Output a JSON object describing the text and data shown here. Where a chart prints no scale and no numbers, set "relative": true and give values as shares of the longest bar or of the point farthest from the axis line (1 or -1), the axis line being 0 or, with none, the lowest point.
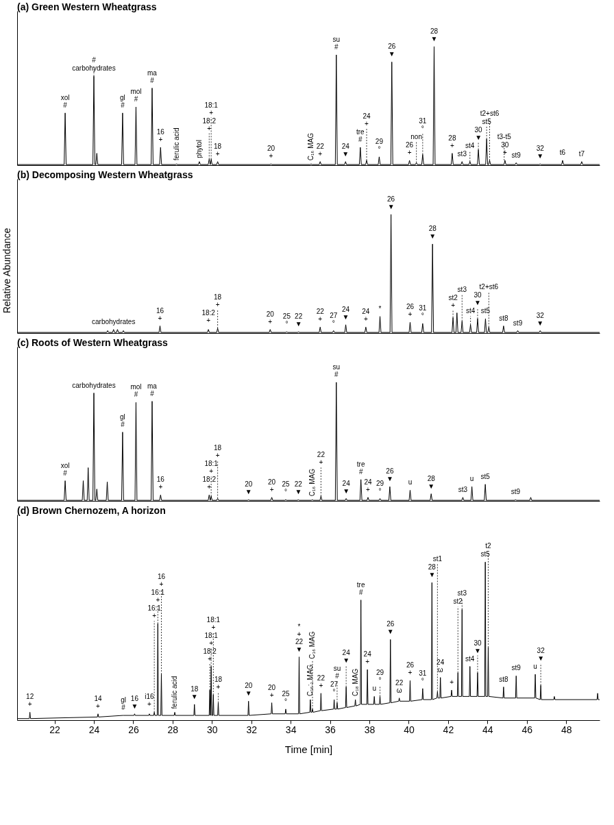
{
  "chart_data": [
    {
      "type": "line",
      "title": "(a) Green Western Wheatgrass",
      "relative": true,
      "color": "#000000",
      "xlim": [
        20.1,
        49.7
      ],
      "tick_labels": false,
      "x": [
        20.1,
        22.49,
        22.54,
        22.59,
        23.95,
        24.0,
        24.05,
        24.1,
        24.15,
        24.2,
        25.41,
        25.46,
        25.51,
        26.09,
        26.14,
        26.19,
        26.91,
        26.96,
        27.01,
        27.34,
        27.39,
        27.44,
        28.15,
        28.2,
        28.25,
        29.31,
        29.36,
        29.41,
        29.81,
        29.86,
        29.91,
        29.92,
        29.96,
        30.01,
        30.24,
        30.29,
        30.34,
        32.95,
        33.0,
        33.05,
        34.99,
        35.04,
        35.09,
        35.45,
        35.5,
        35.55,
        36.27,
        36.32,
        36.37,
        36.74,
        36.79,
        36.84,
        37.49,
        37.54,
        37.59,
        37.81,
        37.86,
        37.91,
        38.45,
        38.5,
        38.55,
        39.09,
        39.14,
        39.19,
        39.99,
        40.04,
        40.09,
        40.34,
        40.39,
        40.44,
        40.66,
        40.71,
        40.76,
        41.24,
        41.29,
        41.34,
        42.16,
        42.21,
        42.26,
        42.66,
        42.71,
        42.76,
        43.06,
        43.11,
        43.16,
        43.49,
        43.54,
        43.59,
        43.91,
        43.96,
        44.01,
        44.06,
        44.11,
        44.16,
        44.84,
        44.89,
        44.94,
        45.41,
        45.46,
        45.51,
        46.63,
        46.68,
        46.73,
        47.77,
        47.82,
        47.87,
        48.74,
        48.79,
        48.84,
        49.7
      ],
      "values": [
        0.005,
        0.005,
        0.44,
        0.005,
        0.005,
        0.75,
        0.005,
        0.005,
        0.1,
        0.005,
        0.005,
        0.44,
        0.005,
        0.005,
        0.49,
        0.005,
        0.005,
        0.65,
        0.005,
        0.005,
        0.15,
        0.005,
        0.005,
        0.01,
        0.005,
        0.005,
        0.03,
        0.005,
        0.005,
        0.05,
        0.005,
        0.005,
        0.05,
        0.005,
        0.005,
        0.03,
        0.005,
        0.005,
        0.01,
        0.005,
        0.005,
        0.01,
        0.005,
        0.005,
        0.03,
        0.005,
        0.005,
        0.93,
        0.005,
        0.005,
        0.03,
        0.005,
        0.005,
        0.15,
        0.005,
        0.005,
        0.04,
        0.005,
        0.005,
        0.07,
        0.005,
        0.005,
        0.87,
        0.005,
        0.005,
        0.04,
        0.005,
        0.005,
        0.02,
        0.005,
        0.005,
        0.09,
        0.005,
        0.005,
        1,
        0.005,
        0.005,
        0.1,
        0.005,
        0.005,
        0.03,
        0.005,
        0.005,
        0.03,
        0.005,
        0.005,
        0.13,
        0.005,
        0.005,
        0.22,
        0.005,
        0.005,
        0.04,
        0.005,
        0.005,
        0.04,
        0.005,
        0.005,
        0.02,
        0.005,
        0.005,
        0.01,
        0.005,
        0.005,
        0.04,
        0.005,
        0.005,
        0.03,
        0.005,
        0.005
      ],
      "annotations": [
        {
          "text": "carbohydrates",
          "x": 24.0,
          "y": 0.75
        },
        {
          "text": "xol\n#",
          "x": 22.54,
          "y": 0.44
        },
        {
          "text": "#",
          "x": 24.0,
          "y": 0.75
        },
        {
          "text": "gl\n#",
          "x": 25.46,
          "y": 0.44
        },
        {
          "text": "mol\n#",
          "x": 26.14,
          "y": 0.49
        },
        {
          "text": "ma\n#",
          "x": 26.96,
          "y": 0.65
        },
        {
          "text": "16\n+",
          "x": 27.39,
          "y": 0.15
        },
        {
          "text": "ferulic acid",
          "x": 28.2,
          "y": 0.01
        },
        {
          "text": "phytol",
          "x": 29.36,
          "y": 0.03
        },
        {
          "text": "18:2\n+",
          "x": 29.86,
          "y": 0.05
        },
        {
          "text": "18:1\n+",
          "x": 29.96,
          "y": 0.05
        },
        {
          "text": "18\n+",
          "x": 30.29,
          "y": 0.03
        },
        {
          "text": "20\n+",
          "x": 33.0,
          "y": 0.01
        },
        {
          "text": "C₁₆ MAG",
          "x": 35.04,
          "y": 0.01
        },
        {
          "text": "22\n+",
          "x": 35.5,
          "y": 0.03
        },
        {
          "text": "su\n#",
          "x": 36.32,
          "y": 0.93
        },
        {
          "text": "24\n▼",
          "x": 36.79,
          "y": 0.03
        },
        {
          "text": "tre\n#",
          "x": 37.54,
          "y": 0.15
        },
        {
          "text": "24\n+",
          "x": 37.86,
          "y": 0.04
        },
        {
          "text": "29\n°",
          "x": 38.5,
          "y": 0.07
        },
        {
          "text": "26\n▼",
          "x": 39.14,
          "y": 0.87
        },
        {
          "text": "26\n+",
          "x": 40.04,
          "y": 0.04
        },
        {
          "text": "non",
          "x": 40.39,
          "y": 0.02
        },
        {
          "text": "31\n°",
          "x": 40.71,
          "y": 0.09
        },
        {
          "text": "28\n▼",
          "x": 41.29,
          "y": 1
        },
        {
          "text": "28\n+",
          "x": 42.21,
          "y": 0.1
        },
        {
          "text": "st3",
          "x": 42.71,
          "y": 0.03
        },
        {
          "text": "st4",
          "x": 43.11,
          "y": 0.03
        },
        {
          "text": "30\n▼",
          "x": 43.54,
          "y": 0.13
        },
        {
          "text": "st5",
          "x": 43.96,
          "y": 0.22
        },
        {
          "text": "t2+st6",
          "x": 44.11,
          "y": 0.04
        },
        {
          "text": "30\n+",
          "x": 44.89,
          "y": 0.04
        },
        {
          "text": "t3-t5",
          "x": 44.85,
          "y": 0.04
        },
        {
          "text": "st9",
          "x": 45.46,
          "y": 0.02
        },
        {
          "text": "32\n▼",
          "x": 46.68,
          "y": 0.01
        },
        {
          "text": "t6",
          "x": 47.82,
          "y": 0.04
        },
        {
          "text": "t7",
          "x": 48.79,
          "y": 0.03
        }
      ]
    },
    {
      "type": "line",
      "title": "(b) Decomposing Western Wheatgrass",
      "ylabel": "Relative Abundance",
      "relative": true,
      "color": "#000000",
      "xlim": [
        20.1,
        49.7
      ],
      "tick_labels": false,
      "x": [
        20.1,
        24.65,
        24.7,
        24.75,
        24.95,
        25.0,
        25.05,
        25.15,
        25.2,
        25.25,
        25.45,
        25.5,
        25.55,
        27.31,
        27.36,
        27.41,
        29.77,
        29.82,
        29.87,
        30.24,
        30.29,
        30.34,
        32.91,
        32.96,
        33.01,
        33.75,
        33.8,
        33.85,
        34.35,
        34.4,
        34.45,
        35.45,
        35.5,
        35.55,
        36.13,
        36.18,
        36.23,
        36.75,
        36.8,
        36.85,
        37.77,
        37.82,
        37.87,
        38.49,
        38.54,
        38.59,
        39.05,
        39.1,
        39.15,
        40.02,
        40.07,
        40.12,
        40.66,
        40.71,
        40.76,
        41.16,
        41.21,
        41.26,
        42.2,
        42.25,
        42.3,
        42.4,
        42.45,
        42.5,
        42.66,
        42.71,
        42.76,
        43.09,
        43.14,
        43.19,
        43.45,
        43.5,
        43.55,
        43.85,
        43.9,
        43.95,
        44.02,
        44.07,
        44.12,
        44.77,
        44.82,
        44.87,
        45.49,
        45.54,
        45.59,
        46.63,
        46.68,
        46.73,
        49.7
      ],
      "values": [
        0.005,
        0.005,
        0.02,
        0.005,
        0.005,
        0.03,
        0.005,
        0.005,
        0.03,
        0.005,
        0.005,
        0.02,
        0.005,
        0.005,
        0.06,
        0.005,
        0.005,
        0.03,
        0.005,
        0.005,
        0.04,
        0.005,
        0.005,
        0.03,
        0.005,
        0.005,
        0.01,
        0.005,
        0.005,
        0.01,
        0.005,
        0.005,
        0.05,
        0.005,
        0.005,
        0.02,
        0.005,
        0.005,
        0.07,
        0.005,
        0.005,
        0.05,
        0.005,
        0.005,
        0.14,
        0.005,
        0.005,
        1,
        0.005,
        0.005,
        0.09,
        0.005,
        0.005,
        0.08,
        0.005,
        0.005,
        0.75,
        0.005,
        0.005,
        0.13,
        0.005,
        0.005,
        0.17,
        0.005,
        0.005,
        0.1,
        0.005,
        0.005,
        0.07,
        0.005,
        0.005,
        0.12,
        0.005,
        0.005,
        0.12,
        0.005,
        0.005,
        0.05,
        0.005,
        0.005,
        0.06,
        0.005,
        0.005,
        0.02,
        0.005,
        0.005,
        0.02,
        0.005,
        0.005
      ],
      "annotations": [
        {
          "text": "carbohydrates",
          "x": 25.0,
          "y": 0.03
        },
        {
          "text": "16\n+",
          "x": 27.36,
          "y": 0.06
        },
        {
          "text": "18:2\n+",
          "x": 29.82,
          "y": 0.03
        },
        {
          "text": "18\n+",
          "x": 30.29,
          "y": 0.04
        },
        {
          "text": "20\n+",
          "x": 32.96,
          "y": 0.03
        },
        {
          "text": "25\n°",
          "x": 33.8,
          "y": 0.01
        },
        {
          "text": "22\n▼",
          "x": 34.4,
          "y": 0.01
        },
        {
          "text": "22\n+",
          "x": 35.5,
          "y": 0.05
        },
        {
          "text": "27\n°",
          "x": 36.18,
          "y": 0.02
        },
        {
          "text": "24\n▼",
          "x": 36.8,
          "y": 0.07
        },
        {
          "text": "24\n+",
          "x": 37.82,
          "y": 0.05
        },
        {
          "text": "*",
          "x": 38.54,
          "y": 0.14
        },
        {
          "text": "26\n▼",
          "x": 39.1,
          "y": 1
        },
        {
          "text": "26\n+",
          "x": 40.07,
          "y": 0.09
        },
        {
          "text": "31\n°",
          "x": 40.71,
          "y": 0.08
        },
        {
          "text": "28\n▼",
          "x": 41.21,
          "y": 0.75
        },
        {
          "text": "st2\n+",
          "x": 42.25,
          "y": 0.13
        },
        {
          "text": "st3",
          "x": 42.71,
          "y": 0.1
        },
        {
          "text": "st4",
          "x": 43.14,
          "y": 0.07
        },
        {
          "text": "30\n▼",
          "x": 43.5,
          "y": 0.12
        },
        {
          "text": "st5",
          "x": 43.9,
          "y": 0.12
        },
        {
          "text": "t2+st6",
          "x": 44.07,
          "y": 0.05
        },
        {
          "text": "st8",
          "x": 44.82,
          "y": 0.06
        },
        {
          "text": "st9",
          "x": 45.54,
          "y": 0.02
        },
        {
          "text": "32\n▼",
          "x": 46.68,
          "y": 0.02
        }
      ]
    },
    {
      "type": "line",
      "title": "(c) Roots of Western Wheatgrass",
      "relative": true,
      "color": "#000000",
      "xlim": [
        20.1,
        49.7
      ],
      "tick_labels": false,
      "x": [
        20.1,
        22.49,
        22.54,
        22.59,
        23.41,
        23.46,
        23.51,
        23.66,
        23.71,
        23.76,
        23.95,
        24.0,
        24.05,
        24.1,
        24.15,
        24.2,
        24.63,
        24.68,
        24.73,
        25.41,
        25.46,
        25.51,
        26.09,
        26.14,
        26.19,
        26.91,
        26.96,
        27.01,
        27.34,
        27.39,
        27.44,
        29.81,
        29.86,
        29.91,
        29.92,
        29.96,
        30.01,
        30.24,
        30.29,
        30.34,
        31.81,
        31.86,
        31.91,
        32.99,
        33.04,
        33.09,
        33.7,
        33.75,
        33.8,
        34.34,
        34.39,
        34.44,
        35.05,
        35.1,
        35.15,
        35.49,
        35.54,
        35.59,
        36.27,
        36.32,
        36.37,
        36.77,
        36.82,
        36.87,
        37.52,
        37.57,
        37.62,
        37.88,
        37.93,
        37.98,
        38.49,
        38.54,
        38.59,
        38.99,
        39.04,
        39.09,
        40.02,
        40.07,
        40.12,
        41.09,
        41.14,
        41.19,
        42.7,
        42.75,
        42.8,
        43.16,
        43.21,
        43.26,
        43.84,
        43.89,
        43.94,
        45.38,
        45.43,
        45.48,
        46.15,
        46.2,
        46.25,
        49.7
      ],
      "values": [
        0.005,
        0.005,
        0.17,
        0.005,
        0.005,
        0.17,
        0.005,
        0.005,
        0.28,
        0.005,
        0.005,
        0.91,
        0.005,
        0.005,
        0.1,
        0.005,
        0.005,
        0.16,
        0.005,
        0.005,
        0.58,
        0.005,
        0.005,
        0.83,
        0.005,
        0.005,
        0.84,
        0.005,
        0.005,
        0.05,
        0.005,
        0.005,
        0.05,
        0.005,
        0.005,
        0.04,
        0.005,
        0.005,
        0.02,
        0.005,
        0.005,
        0.01,
        0.005,
        0.005,
        0.03,
        0.005,
        0.005,
        0.01,
        0.005,
        0.005,
        0.01,
        0.005,
        0.005,
        0.01,
        0.005,
        0.005,
        0.04,
        0.005,
        0.005,
        1,
        0.005,
        0.005,
        0.02,
        0.005,
        0.005,
        0.18,
        0.005,
        0.005,
        0.03,
        0.005,
        0.005,
        0.02,
        0.005,
        0.005,
        0.12,
        0.005,
        0.005,
        0.09,
        0.005,
        0.005,
        0.06,
        0.005,
        0.005,
        0.03,
        0.005,
        0.005,
        0.12,
        0.005,
        0.005,
        0.14,
        0.005,
        0.005,
        0.01,
        0.005,
        0.005,
        0.03,
        0.005,
        0.005
      ],
      "annotations": [
        {
          "text": "carbohydrates",
          "x": 24.0,
          "y": 0.91
        },
        {
          "text": "xol\n#",
          "x": 22.54,
          "y": 0.17
        },
        {
          "text": "gl\n#",
          "x": 25.46,
          "y": 0.58
        },
        {
          "text": "mol\n#",
          "x": 26.14,
          "y": 0.83
        },
        {
          "text": "ma\n#",
          "x": 26.96,
          "y": 0.84
        },
        {
          "text": "16\n+",
          "x": 27.39,
          "y": 0.05
        },
        {
          "text": "18:2\n+",
          "x": 29.86,
          "y": 0.05
        },
        {
          "text": "18:1\n+",
          "x": 29.96,
          "y": 0.04
        },
        {
          "text": "18\n+",
          "x": 30.29,
          "y": 0.02
        },
        {
          "text": "20\n▼",
          "x": 31.86,
          "y": 0.01
        },
        {
          "text": "20\n+",
          "x": 33.04,
          "y": 0.03
        },
        {
          "text": "25\n°",
          "x": 33.75,
          "y": 0.01
        },
        {
          "text": "22\n▼",
          "x": 34.39,
          "y": 0.01
        },
        {
          "text": "C₁₆ MAG",
          "x": 35.1,
          "y": 0.01
        },
        {
          "text": "22\n+",
          "x": 35.54,
          "y": 0.04
        },
        {
          "text": "su\n#",
          "x": 36.32,
          "y": 1
        },
        {
          "text": "24\n▼",
          "x": 36.82,
          "y": 0.02
        },
        {
          "text": "tre\n#",
          "x": 37.57,
          "y": 0.18
        },
        {
          "text": "24\n+",
          "x": 37.93,
          "y": 0.03
        },
        {
          "text": "29\n°",
          "x": 38.54,
          "y": 0.02
        },
        {
          "text": "26\n▼",
          "x": 39.04,
          "y": 0.12
        },
        {
          "text": "u",
          "x": 40.07,
          "y": 0.09
        },
        {
          "text": "28\n▼",
          "x": 41.14,
          "y": 0.06
        },
        {
          "text": "st3",
          "x": 42.75,
          "y": 0.03
        },
        {
          "text": "u",
          "x": 43.21,
          "y": 0.12
        },
        {
          "text": "st5",
          "x": 43.89,
          "y": 0.14
        },
        {
          "text": "st9",
          "x": 45.43,
          "y": 0.01
        }
      ]
    },
    {
      "type": "line",
      "title": "(d) Brown Chernozem, A horizon",
      "xlabel": "Time [min]",
      "relative": true,
      "color": "#000000",
      "xlim": [
        20.1,
        49.7
      ],
      "xticks": [
        22,
        24,
        26,
        28,
        30,
        32,
        34,
        36,
        38,
        40,
        42,
        44,
        46,
        48
      ],
      "tick_labels": "x",
      "x": [
        20.1,
        20.72,
        20.75,
        20.78,
        24.18,
        24.21,
        24.24,
        25.47,
        25.5,
        25.53,
        26.04,
        26.07,
        26.1,
        26.79,
        26.82,
        26.85,
        27.04,
        27.07,
        27.1,
        27.22,
        27.25,
        27.28,
        27.4,
        27.43,
        27.46,
        28.08,
        28.11,
        28.14,
        29.08,
        29.11,
        29.14,
        29.86,
        29.89,
        29.92,
        29.93,
        29.96,
        29.99,
        30.04,
        30.07,
        30.1,
        30.29,
        30.32,
        30.35,
        31.83,
        31.86,
        31.89,
        33.01,
        33.04,
        33.07,
        33.72,
        33.75,
        33.78,
        34.4,
        34.43,
        34.46,
        34.97,
        35.0,
        35.03,
        35.08,
        35.11,
        35.14,
        35.51,
        35.54,
        35.57,
        36.18,
        36.21,
        36.24,
        36.33,
        36.36,
        36.39,
        36.79,
        36.82,
        36.85,
        37.26,
        37.29,
        37.32,
        37.54,
        37.57,
        37.6,
        37.87,
        37.9,
        37.93,
        38.22,
        38.25,
        38.28,
        38.51,
        38.54,
        38.57,
        39.04,
        39.07,
        39.1,
        39.49,
        39.52,
        39.55,
        40.04,
        40.07,
        40.1,
        40.68,
        40.71,
        40.74,
        41.15,
        41.18,
        41.21,
        41.43,
        41.46,
        41.49,
        41.58,
        41.61,
        41.64,
        42.15,
        42.18,
        42.21,
        42.47,
        42.5,
        42.53,
        42.68,
        42.71,
        42.74,
        43.08,
        43.11,
        43.14,
        43.47,
        43.5,
        43.53,
        43.86,
        43.89,
        43.92,
        44.01,
        44.04,
        44.07,
        44.79,
        44.82,
        44.85,
        45.43,
        45.46,
        45.49,
        46.4,
        46.43,
        46.46,
        46.68,
        46.71,
        46.74,
        47.37,
        47.4,
        47.43,
        49.57,
        49.6,
        49.63,
        49.7
      ],
      "values": [
        0.01,
        0.01,
        0.05,
        0.01,
        0.02,
        0.04,
        0.02,
        0.03,
        0.03,
        0.03,
        0.03,
        0.04,
        0.03,
        0.03,
        0.04,
        0.03,
        0.03,
        0.05,
        0.03,
        0.03,
        0.61,
        0.03,
        0.03,
        0.29,
        0.03,
        0.03,
        0.05,
        0.03,
        0.03,
        0.1,
        0.03,
        0.03,
        0.19,
        0.03,
        0.03,
        0.34,
        0.03,
        0.03,
        0.16,
        0.03,
        0.03,
        0.11,
        0.03,
        0.03,
        0.12,
        0.03,
        0.04,
        0.11,
        0.04,
        0.04,
        0.07,
        0.04,
        0.04,
        0.4,
        0.04,
        0.05,
        0.13,
        0.05,
        0.05,
        0.07,
        0.05,
        0.06,
        0.17,
        0.06,
        0.07,
        0.13,
        0.07,
        0.07,
        0.11,
        0.07,
        0.08,
        0.21,
        0.08,
        0.09,
        0.13,
        0.09,
        0.1,
        0.76,
        0.1,
        0.1,
        0.32,
        0.1,
        0.1,
        0.15,
        0.1,
        0.1,
        0.15,
        0.1,
        0.11,
        0.51,
        0.11,
        0.12,
        0.14,
        0.12,
        0.12,
        0.25,
        0.12,
        0.13,
        0.2,
        0.13,
        0.13,
        0.87,
        0.13,
        0.14,
        0.18,
        0.14,
        0.14,
        0.27,
        0.14,
        0.15,
        0.19,
        0.15,
        0.15,
        0.3,
        0.15,
        0.15,
        0.7,
        0.15,
        0.15,
        0.34,
        0.15,
        0.15,
        0.3,
        0.15,
        0.15,
        1,
        0.15,
        0.15,
        0.46,
        0.15,
        0.14,
        0.21,
        0.14,
        0.14,
        0.28,
        0.14,
        0.14,
        0.29,
        0.14,
        0.13,
        0.22,
        0.13,
        0.13,
        0.15,
        0.13,
        0.13,
        0.17,
        0.13,
        0.13
      ],
      "annotations": [
        {
          "text": "12\n+",
          "x": 20.75,
          "y": 0.05
        },
        {
          "text": "14\n+",
          "x": 24.21,
          "y": 0.04
        },
        {
          "text": "gl\n#",
          "x": 25.5,
          "y": 0.03
        },
        {
          "text": "16\n▼",
          "x": 26.07,
          "y": 0.04
        },
        {
          "text": "i16\n+",
          "x": 26.82,
          "y": 0.04
        },
        {
          "text": "16:1\n+",
          "x": 27.07,
          "y": 0.05
        },
        {
          "text": "16:1\n+",
          "x": 27.25,
          "y": 0.61
        },
        {
          "text": "16\n+",
          "x": 27.43,
          "y": 0.29
        },
        {
          "text": "ferulic acid",
          "x": 28.11,
          "y": 0.05
        },
        {
          "text": "18\n▼",
          "x": 29.11,
          "y": 0.1
        },
        {
          "text": "18:2\n+",
          "x": 29.89,
          "y": 0.19
        },
        {
          "text": "18:1\n+",
          "x": 29.96,
          "y": 0.34
        },
        {
          "text": "18:1\n+",
          "x": 30.07,
          "y": 0.16
        },
        {
          "text": "18\n+",
          "x": 30.32,
          "y": 0.11
        },
        {
          "text": "20\n▼",
          "x": 31.86,
          "y": 0.12
        },
        {
          "text": "20\n+",
          "x": 33.04,
          "y": 0.11
        },
        {
          "text": "25\n°",
          "x": 33.75,
          "y": 0.07
        },
        {
          "text": "*\n+\n22\n▼",
          "x": 34.43,
          "y": 0.4
        },
        {
          "text": "C₁₆:₁ MAG",
          "x": 35.0,
          "y": 0.13
        },
        {
          "text": "C₁₆ MAG",
          "x": 35.11,
          "y": 0.07
        },
        {
          "text": "22\n+",
          "x": 35.54,
          "y": 0.17
        },
        {
          "text": "27\n°",
          "x": 36.21,
          "y": 0.13
        },
        {
          "text": "su\n#",
          "x": 36.36,
          "y": 0.11
        },
        {
          "text": "24\n▼",
          "x": 36.82,
          "y": 0.21
        },
        {
          "text": "C₁₈ MAG",
          "x": 37.29,
          "y": 0.13
        },
        {
          "text": "tre\n#",
          "x": 37.57,
          "y": 0.76
        },
        {
          "text": "24\n+",
          "x": 37.9,
          "y": 0.32
        },
        {
          "text": "u",
          "x": 38.25,
          "y": 0.15
        },
        {
          "text": "29\n°",
          "x": 38.54,
          "y": 0.15
        },
        {
          "text": "26\n▼",
          "x": 39.07,
          "y": 0.51
        },
        {
          "text": "22\nω",
          "x": 39.52,
          "y": 0.14
        },
        {
          "text": "26\n+",
          "x": 40.07,
          "y": 0.25
        },
        {
          "text": "31\n°",
          "x": 40.71,
          "y": 0.2
        },
        {
          "text": "28\n▼",
          "x": 41.18,
          "y": 0.87
        },
        {
          "text": "st1",
          "x": 41.46,
          "y": 0.18
        },
        {
          "text": "24\nω",
          "x": 41.61,
          "y": 0.27
        },
        {
          "text": "+",
          "x": 42.18,
          "y": 0.19
        },
        {
          "text": "st2",
          "x": 42.5,
          "y": 0.3
        },
        {
          "text": "st3",
          "x": 42.71,
          "y": 0.7
        },
        {
          "text": "st4",
          "x": 43.11,
          "y": 0.34
        },
        {
          "text": "30\n▼",
          "x": 43.5,
          "y": 0.3
        },
        {
          "text": "st5",
          "x": 43.89,
          "y": 1
        },
        {
          "text": "t2",
          "x": 44.04,
          "y": 0.46
        },
        {
          "text": "st8",
          "x": 44.82,
          "y": 0.21
        },
        {
          "text": "st9",
          "x": 45.46,
          "y": 0.28
        },
        {
          "text": "u",
          "x": 46.43,
          "y": 0.29
        },
        {
          "text": "32\n▼",
          "x": 46.71,
          "y": 0.22
        }
      ]
    }
  ]
}
